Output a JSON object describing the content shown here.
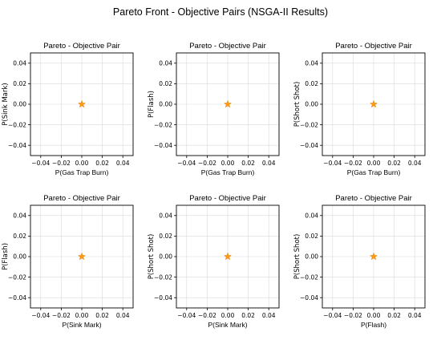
{
  "figure": {
    "title": "Pareto Front - Objective Pairs (NSGA-II Results)"
  },
  "colors": {
    "point": "#ff9a14",
    "point_edge": "#e07f00",
    "grid": "#d9d9d9",
    "axes": "#000000"
  },
  "chart_data": [
    {
      "type": "scatter",
      "title": "Pareto - Objective Pair",
      "xlabel": "P(Gas Trap Burn)",
      "ylabel": "P(Sink Mark)",
      "xlim": [
        -0.05,
        0.05
      ],
      "ylim": [
        -0.05,
        0.05
      ],
      "xticks": [
        -0.04,
        -0.02,
        0.0,
        0.02,
        0.04
      ],
      "yticks": [
        -0.04,
        -0.02,
        0.0,
        0.02,
        0.04
      ],
      "xtick_labels": [
        "−0.04",
        "−0.02",
        "0.00",
        "0.02",
        "0.04"
      ],
      "ytick_labels": [
        "−0.04",
        "−0.02",
        "0.00",
        "0.02",
        "0.04"
      ],
      "grid": true,
      "marker": "star",
      "points": [
        {
          "x": 0.0,
          "y": 0.0
        }
      ]
    },
    {
      "type": "scatter",
      "title": "Pareto - Objective Pair",
      "xlabel": "P(Gas Trap Burn)",
      "ylabel": "P(Flash)",
      "xlim": [
        -0.05,
        0.05
      ],
      "ylim": [
        -0.05,
        0.05
      ],
      "xticks": [
        -0.04,
        -0.02,
        0.0,
        0.02,
        0.04
      ],
      "yticks": [
        -0.04,
        -0.02,
        0.0,
        0.02,
        0.04
      ],
      "xtick_labels": [
        "−0.04",
        "−0.02",
        "0.00",
        "0.02",
        "0.04"
      ],
      "ytick_labels": [
        "−0.04",
        "−0.02",
        "0.00",
        "0.02",
        "0.04"
      ],
      "grid": true,
      "marker": "star",
      "points": [
        {
          "x": 0.0,
          "y": 0.0
        }
      ]
    },
    {
      "type": "scatter",
      "title": "Pareto - Objective Pair",
      "xlabel": "P(Gas Trap Burn)",
      "ylabel": "P(Short Shot)",
      "xlim": [
        -0.05,
        0.05
      ],
      "ylim": [
        -0.05,
        0.05
      ],
      "xticks": [
        -0.04,
        -0.02,
        0.0,
        0.02,
        0.04
      ],
      "yticks": [
        -0.04,
        -0.02,
        0.0,
        0.02,
        0.04
      ],
      "xtick_labels": [
        "−0.04",
        "−0.02",
        "0.00",
        "0.02",
        "0.04"
      ],
      "ytick_labels": [
        "−0.04",
        "−0.02",
        "0.00",
        "0.02",
        "0.04"
      ],
      "grid": true,
      "marker": "star",
      "points": [
        {
          "x": 0.0,
          "y": 0.0
        }
      ]
    },
    {
      "type": "scatter",
      "title": "Pareto - Objective Pair",
      "xlabel": "P(Sink Mark)",
      "ylabel": "P(Flash)",
      "xlim": [
        -0.05,
        0.05
      ],
      "ylim": [
        -0.05,
        0.05
      ],
      "xticks": [
        -0.04,
        -0.02,
        0.0,
        0.02,
        0.04
      ],
      "yticks": [
        -0.04,
        -0.02,
        0.0,
        0.02,
        0.04
      ],
      "xtick_labels": [
        "−0.04",
        "−0.02",
        "0.00",
        "0.02",
        "0.04"
      ],
      "ytick_labels": [
        "−0.04",
        "−0.02",
        "0.00",
        "0.02",
        "0.04"
      ],
      "grid": true,
      "marker": "star",
      "points": [
        {
          "x": 0.0,
          "y": 0.0
        }
      ]
    },
    {
      "type": "scatter",
      "title": "Pareto - Objective Pair",
      "xlabel": "P(Sink Mark)",
      "ylabel": "P(Short Shot)",
      "xlim": [
        -0.05,
        0.05
      ],
      "ylim": [
        -0.05,
        0.05
      ],
      "xticks": [
        -0.04,
        -0.02,
        0.0,
        0.02,
        0.04
      ],
      "yticks": [
        -0.04,
        -0.02,
        0.0,
        0.02,
        0.04
      ],
      "xtick_labels": [
        "−0.04",
        "−0.02",
        "0.00",
        "0.02",
        "0.04"
      ],
      "ytick_labels": [
        "−0.04",
        "−0.02",
        "0.00",
        "0.02",
        "0.04"
      ],
      "grid": true,
      "marker": "star",
      "points": [
        {
          "x": 0.0,
          "y": 0.0
        }
      ]
    },
    {
      "type": "scatter",
      "title": "Pareto - Objective Pair",
      "xlabel": "P(Flash)",
      "ylabel": "P(Short Shot)",
      "xlim": [
        -0.05,
        0.05
      ],
      "ylim": [
        -0.05,
        0.05
      ],
      "xticks": [
        -0.04,
        -0.02,
        0.0,
        0.02,
        0.04
      ],
      "yticks": [
        -0.04,
        -0.02,
        0.0,
        0.02,
        0.04
      ],
      "xtick_labels": [
        "−0.04",
        "−0.02",
        "0.00",
        "0.02",
        "0.04"
      ],
      "ytick_labels": [
        "−0.04",
        "−0.02",
        "0.00",
        "0.02",
        "0.04"
      ],
      "grid": true,
      "marker": "star",
      "points": [
        {
          "x": 0.0,
          "y": 0.0
        }
      ]
    }
  ]
}
